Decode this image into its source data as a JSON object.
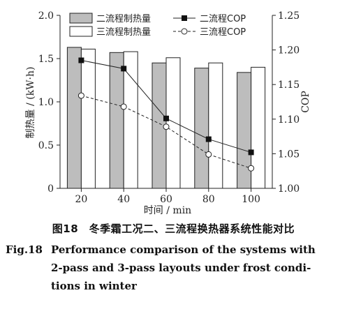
{
  "chart_data": {
    "type": "bar",
    "categories": [
      "20",
      "40",
      "60",
      "80",
      "100"
    ],
    "series": [
      {
        "name": "二流程制热量",
        "axis": "left",
        "kind": "bar",
        "color": "#bdbdbd",
        "values": [
          1.63,
          1.57,
          1.45,
          1.39,
          1.34
        ]
      },
      {
        "name": "三流程制热量",
        "axis": "left",
        "kind": "bar",
        "color": "#ffffff",
        "values": [
          1.61,
          1.58,
          1.51,
          1.45,
          1.4
        ]
      },
      {
        "name": "二流程COP",
        "axis": "right",
        "kind": "line",
        "style": "solid",
        "marker": "filled-square",
        "values": [
          1.185,
          1.173,
          1.101,
          1.071,
          1.052
        ]
      },
      {
        "name": "三流程COP",
        "axis": "right",
        "kind": "line",
        "style": "dashed",
        "marker": "open-circle",
        "values": [
          1.134,
          1.118,
          1.089,
          1.049,
          1.029
        ]
      }
    ],
    "xlabel": "时间 / min",
    "ylabel": "制热量 / (kW·h)",
    "y2label": "COP",
    "ylim": [
      0,
      2.0
    ],
    "y2lim": [
      1.0,
      1.25
    ],
    "yticks": [
      "0",
      "0.5",
      "1.0",
      "1.5",
      "2.0"
    ],
    "y2ticks": [
      "1.00",
      "1.05",
      "1.10",
      "1.15",
      "1.20",
      "1.25"
    ],
    "grid": false,
    "legend_position": "top"
  },
  "caption": {
    "zh": "图18　冬季霜工况二、三流程换热器系统性能对比",
    "en_label": "Fig.18",
    "en_lines": [
      "Performance comparison of the systems with",
      "2-pass and 3-pass layouts under frost condi-",
      "tions in winter"
    ]
  }
}
